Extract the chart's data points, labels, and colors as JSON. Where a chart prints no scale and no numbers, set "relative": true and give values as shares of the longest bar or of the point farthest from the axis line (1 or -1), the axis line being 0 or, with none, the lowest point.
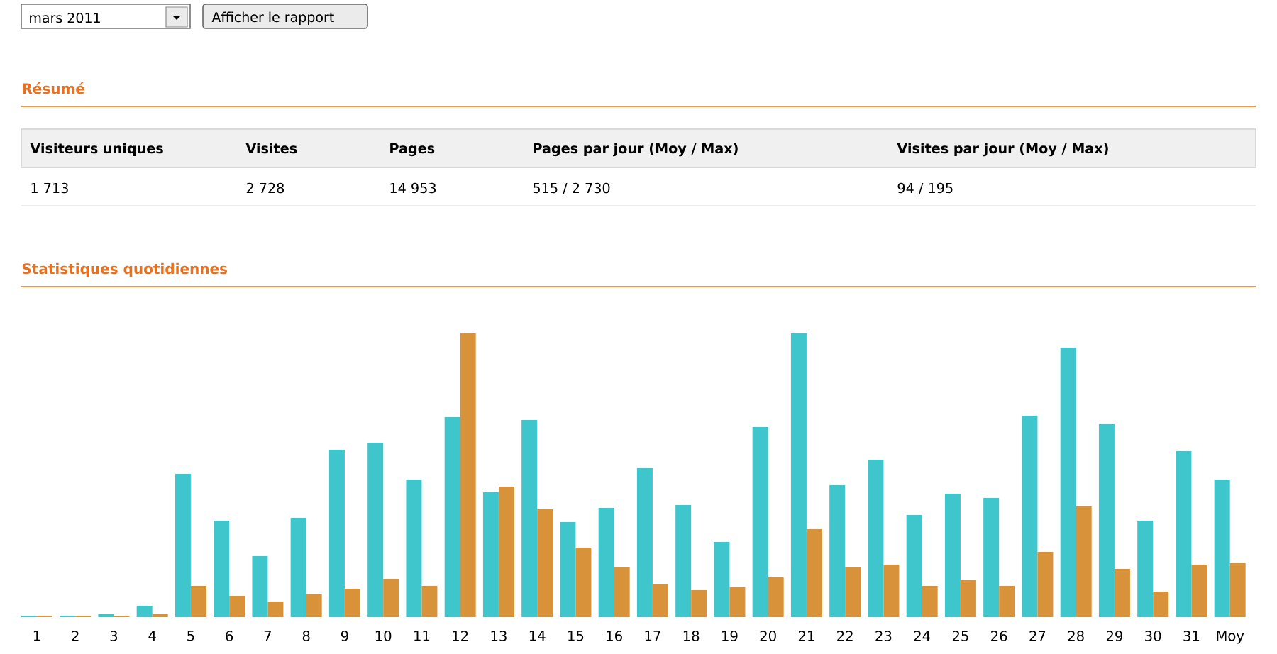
{
  "chart_data": {
    "type": "bar",
    "title": "Statistiques quotidiennes",
    "annotations": [
      "mars 2011",
      "Afficher le rapport",
      "Résumé",
      "Visiteurs uniques",
      "Visites",
      "Pages",
      "Pages par jour (Moy / Max)",
      "Visites par jour (Moy / Max)",
      "1 713",
      "2 728",
      "14 953",
      "515 / 2 730",
      "94 / 195"
    ],
    "categories": [
      "1",
      "2",
      "3",
      "4",
      "5",
      "6",
      "7",
      "8",
      "9",
      "10",
      "11",
      "12",
      "13",
      "14",
      "15",
      "16",
      "17",
      "18",
      "19",
      "20",
      "21",
      "22",
      "23",
      "24",
      "25",
      "26",
      "27",
      "28",
      "29",
      "30",
      "31",
      "Moy"
    ],
    "relative": true,
    "series": [
      {
        "color": "#3ec6cc",
        "values": [
          0.005,
          0.005,
          0.01,
          0.04,
          0.505,
          0.34,
          0.215,
          0.35,
          0.59,
          0.615,
          0.485,
          0.705,
          0.44,
          0.695,
          0.335,
          0.385,
          0.525,
          0.395,
          0.265,
          0.67,
          1,
          0.465,
          0.555,
          0.36,
          0.435,
          0.42,
          0.71,
          0.95,
          0.68,
          0.34,
          0.585,
          0.485
        ]
      },
      {
        "color": "#d8923a",
        "values": [
          0.005,
          0.005,
          0.005,
          0.01,
          0.11,
          0.075,
          0.055,
          0.08,
          0.1,
          0.135,
          0.11,
          1,
          0.46,
          0.38,
          0.245,
          0.175,
          0.115,
          0.095,
          0.105,
          0.14,
          0.31,
          0.175,
          0.185,
          0.11,
          0.13,
          0.11,
          0.23,
          0.39,
          0.17,
          0.09,
          0.185,
          0.19
        ]
      }
    ]
  }
}
